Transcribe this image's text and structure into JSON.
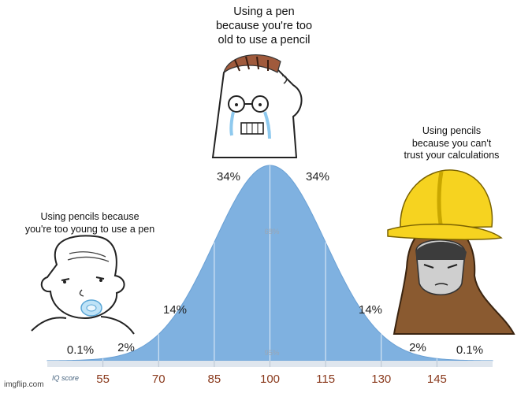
{
  "captions": {
    "middle": "Using a pen\nbecause you're too\nold to use a pencil",
    "left": "Using pencils because\nyou're too young to use a pen",
    "right": "Using pencils\nbecause you can't\ntrust your calculations"
  },
  "chart_data": {
    "type": "area",
    "xlabel": "IQ score",
    "x_ticks": [
      "55",
      "70",
      "85",
      "100",
      "115",
      "130",
      "145"
    ],
    "percent_labels": {
      "center_left": "34%",
      "center_right": "34%",
      "mid_left": "14%",
      "mid_right": "14%",
      "outer_left": "2%",
      "outer_right": "2%",
      "tail_left": "0.1%",
      "tail_right": "0.1%"
    },
    "band_labels": {
      "inner": "68%",
      "outer": "95%"
    },
    "colors": {
      "fill": "#7fb1e0",
      "axis_numbers": "#8a3a1d"
    }
  },
  "watermark": "imgflip.com",
  "colors": {
    "helmet": "#f6d320",
    "hood": "#8a5a30",
    "tears": "#8ec9ee",
    "pacifier": "#bfe3f7"
  }
}
